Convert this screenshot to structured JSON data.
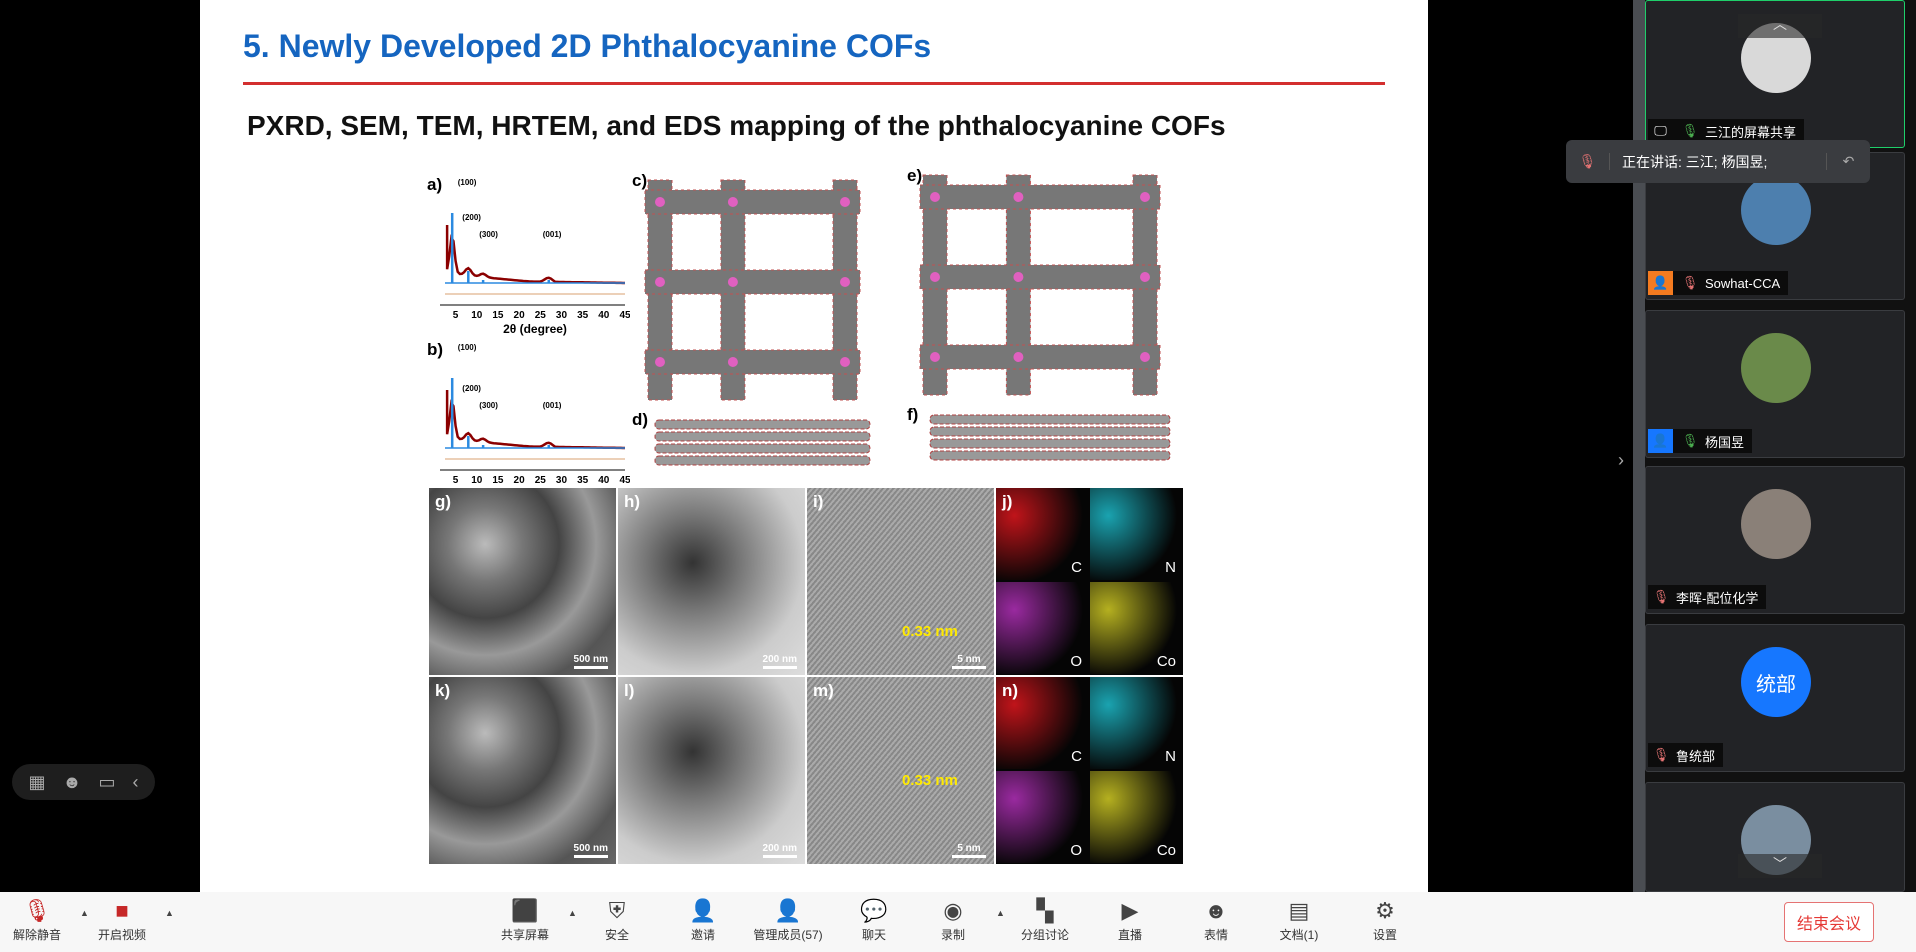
{
  "slide": {
    "title": "5. Newly Developed 2D Phthalocyanine COFs",
    "subtitle": "PXRD, SEM, TEM, HRTEM, and EDS mapping of the phthalocyanine COFs",
    "panel_labels": [
      "a)",
      "b)",
      "c)",
      "d)",
      "e)",
      "f)",
      "g)",
      "h)",
      "i)",
      "j)",
      "k)",
      "l)",
      "m)",
      "n)"
    ],
    "xrd": {
      "peaks": [
        "(100)",
        "(200)",
        "(300)",
        "(001)"
      ],
      "ticks": [
        "5",
        "10",
        "15",
        "20",
        "25",
        "30",
        "35",
        "40",
        "45"
      ],
      "xlabel": "2θ (degree)"
    },
    "scales": {
      "sem": "500 nm",
      "tem": "200 nm",
      "hrtem": "5 nm"
    },
    "spacing": "0.33 nm",
    "eds": [
      "C",
      "N",
      "O",
      "Co"
    ],
    "colors": {
      "title": "#1565c0",
      "rule": "#d32f2f",
      "eds_C": "#c0141a",
      "eds_N": "#1aa3b0",
      "eds_O": "#9a2aa0",
      "eds_Co": "#b5b020"
    }
  },
  "speaking": {
    "text": "正在讲话: 三江; 杨国昱;"
  },
  "participants": [
    {
      "name": "三江的屏幕共享",
      "mic": "on",
      "badge": "screen-share",
      "avatar": "#d9d9d9"
    },
    {
      "name": "Sowhat-CCA",
      "mic": "muted",
      "badge": "user-orange",
      "avatar": "#4d7fae"
    },
    {
      "name": "杨国昱",
      "mic": "on",
      "badge": "user-blue",
      "avatar": "#6a8a4a"
    },
    {
      "name": "李晖-配位化学",
      "mic": "muted",
      "avatar": "#8a8078"
    },
    {
      "name": "鲁统部",
      "mic": "muted",
      "avatar": "#1677ff",
      "initials": "统部"
    },
    {
      "name": "",
      "mic": "",
      "avatar": "#7a8ea0"
    }
  ],
  "toolbar": [
    {
      "label": "解除静音",
      "icon": "mic-muted-icon",
      "glyph": "🎙"
    },
    {
      "label": "开启视频",
      "icon": "video-off-icon",
      "glyph": "■"
    },
    {
      "label": "共享屏幕",
      "icon": "share-screen-icon",
      "glyph": "⬛"
    },
    {
      "label": "安全",
      "icon": "shield-icon",
      "glyph": "⛨"
    },
    {
      "label": "邀请",
      "icon": "invite-icon",
      "glyph": "👤"
    },
    {
      "label": "管理成员(57)",
      "icon": "members-icon",
      "glyph": "👤"
    },
    {
      "label": "聊天",
      "icon": "chat-icon",
      "glyph": "💬"
    },
    {
      "label": "录制",
      "icon": "record-icon",
      "glyph": "◉"
    },
    {
      "label": "分组讨论",
      "icon": "breakout-icon",
      "glyph": "▚"
    },
    {
      "label": "直播",
      "icon": "live-icon",
      "glyph": "▶"
    },
    {
      "label": "表情",
      "icon": "emoji-icon",
      "glyph": "☻"
    },
    {
      "label": "文档(1)",
      "icon": "document-icon",
      "glyph": "▤"
    },
    {
      "label": "设置",
      "icon": "gear-icon",
      "glyph": "⚙"
    }
  ],
  "end_meeting": "结束会议"
}
